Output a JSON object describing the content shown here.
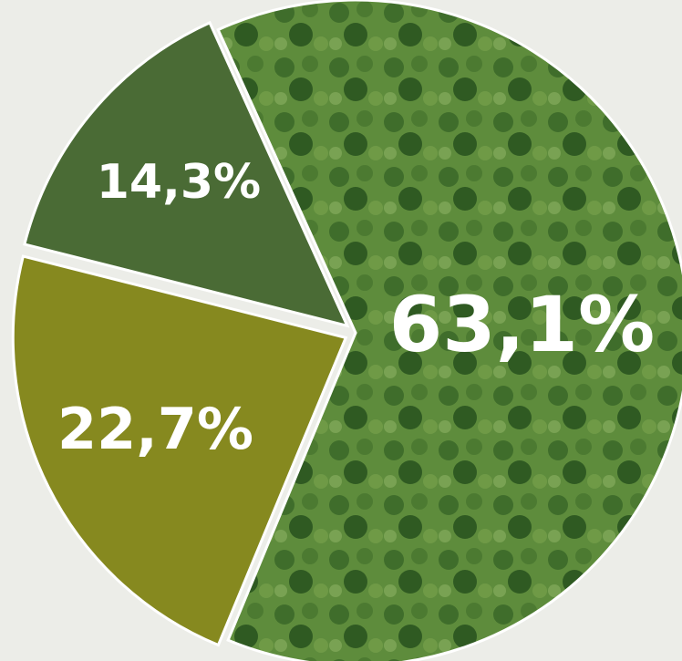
{
  "chart_data": {
    "type": "pie",
    "values": [
      63.1,
      22.7,
      14.3
    ],
    "value_labels": [
      "63,1%",
      "22,7%",
      "14,3%"
    ],
    "colors": [
      "#5e8c3c",
      "#86891f",
      "#4a6b35"
    ],
    "start_angle": -24.4
  }
}
